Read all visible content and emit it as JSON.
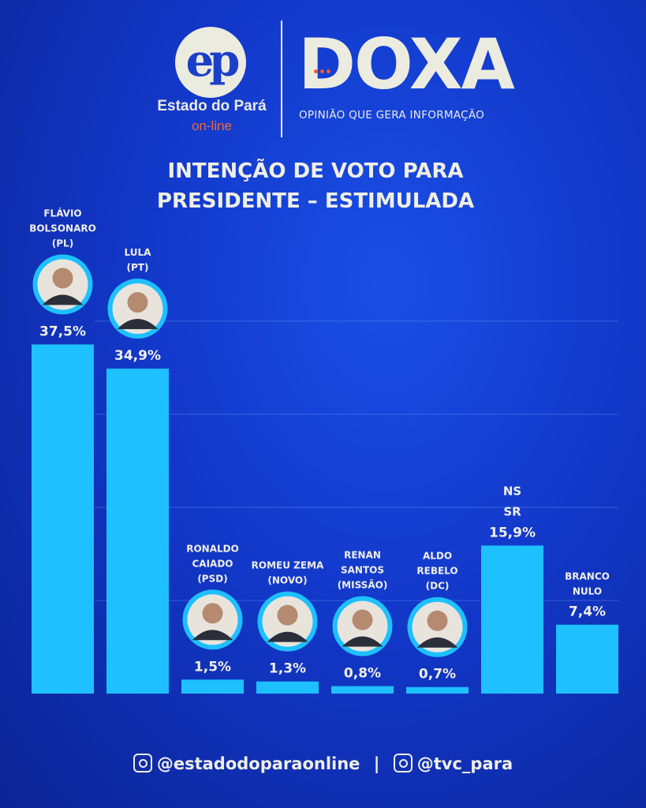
{
  "header": {
    "logo_left_text": "ep",
    "logo_left_name": "Estado do Pará",
    "logo_left_sub": "on-line",
    "logo_right_text": "DOXA",
    "logo_right_tagline": "OPINIÃO QUE GERA INFORMAÇÃO"
  },
  "chart_data": {
    "type": "bar",
    "title": "INTENÇÃO DE VOTO PARA PRESIDENTE – ESTIMULADA",
    "categories": [
      [
        "FLÁVIO",
        "BOLSONARO",
        "(PL)"
      ],
      [
        "LULA",
        "(PT)"
      ],
      [
        "RONALDO",
        "CAIADO",
        "(PSD)"
      ],
      [
        "ROMEU ZEMA",
        "(NOVO)"
      ],
      [
        "RENAN",
        "SANTOS",
        "(MISSÃO)"
      ],
      [
        "ALDO",
        "REBELO",
        "(DC)"
      ],
      [
        "NS",
        "SR"
      ],
      [
        "BRANCO",
        "NULO"
      ]
    ],
    "values": [
      37.5,
      34.9,
      1.5,
      1.3,
      0.8,
      0.7,
      15.9,
      7.4
    ],
    "value_labels": [
      "37,5%",
      "34,9%",
      "1,5%",
      "1,3%",
      "0,8%",
      "0,7%",
      "15,9%",
      "7,4%"
    ],
    "has_photo": [
      true,
      true,
      true,
      true,
      true,
      true,
      false,
      false
    ],
    "ylim": [
      0,
      40
    ],
    "grid": true,
    "bar_color": "#1ec0ff",
    "photo_ring_color": "#1ec0ff"
  },
  "footer": {
    "handle1": "@estadodoparaonline",
    "separator": "|",
    "handle2": "@tvc_para"
  }
}
